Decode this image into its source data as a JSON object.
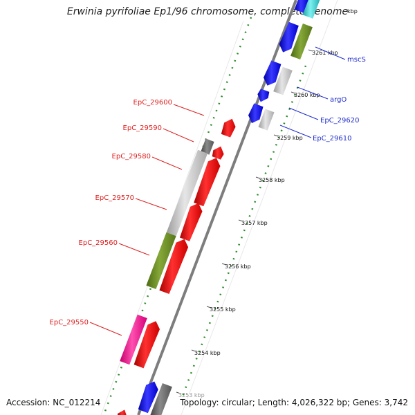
{
  "title": "Erwinia pyrifoliae Ep1/96 chromosome, complete genome",
  "accession": "Accession: NC_012214",
  "summary": "Topology: circular; Length: 4,026,322 bp; Genes: 3,742",
  "scale": {
    "tick_labels": [
      "3254 kbp",
      "3255 kbp",
      "3256 kbp",
      "3257 kbp",
      "3258 kbp",
      "3259 kbp",
      "3260 kbp",
      "3261 kbp"
    ],
    "partial_labels": [
      "kbp",
      "3253 kbp"
    ]
  },
  "genes_reverse": [
    {
      "label": "EpC_29600",
      "color": "#dd1f1f"
    },
    {
      "label": "EpC_29590",
      "color": "#dd1f1f"
    },
    {
      "label": "EpC_29580",
      "color": "#dd1f1f"
    },
    {
      "label": "EpC_29570",
      "color": "#dd1f1f"
    },
    {
      "label": "EpC_29560",
      "color": "#dd1f1f"
    },
    {
      "label": "EpC_29550",
      "color": "#dd1f1f"
    }
  ],
  "genes_forward": [
    {
      "label": "mscS",
      "color": "#1f2ccc"
    },
    {
      "label": "argO",
      "color": "#1f2ccc"
    },
    {
      "label": "EpC_29620",
      "color": "#1f2ccc"
    },
    {
      "label": "EpC_29610",
      "color": "#1f2ccc"
    }
  ],
  "colors": {
    "forward_cds": "#1a1aee",
    "reverse_cds": "#ee1111",
    "rna_or_other": "#c8c8c8",
    "cog_green": "#6b8e23",
    "pseudo": "#666666",
    "magenta": "#ff1493",
    "cyan": "#33cccc",
    "gc_dots": "#228b22",
    "backbone": "#7d7d7d"
  }
}
